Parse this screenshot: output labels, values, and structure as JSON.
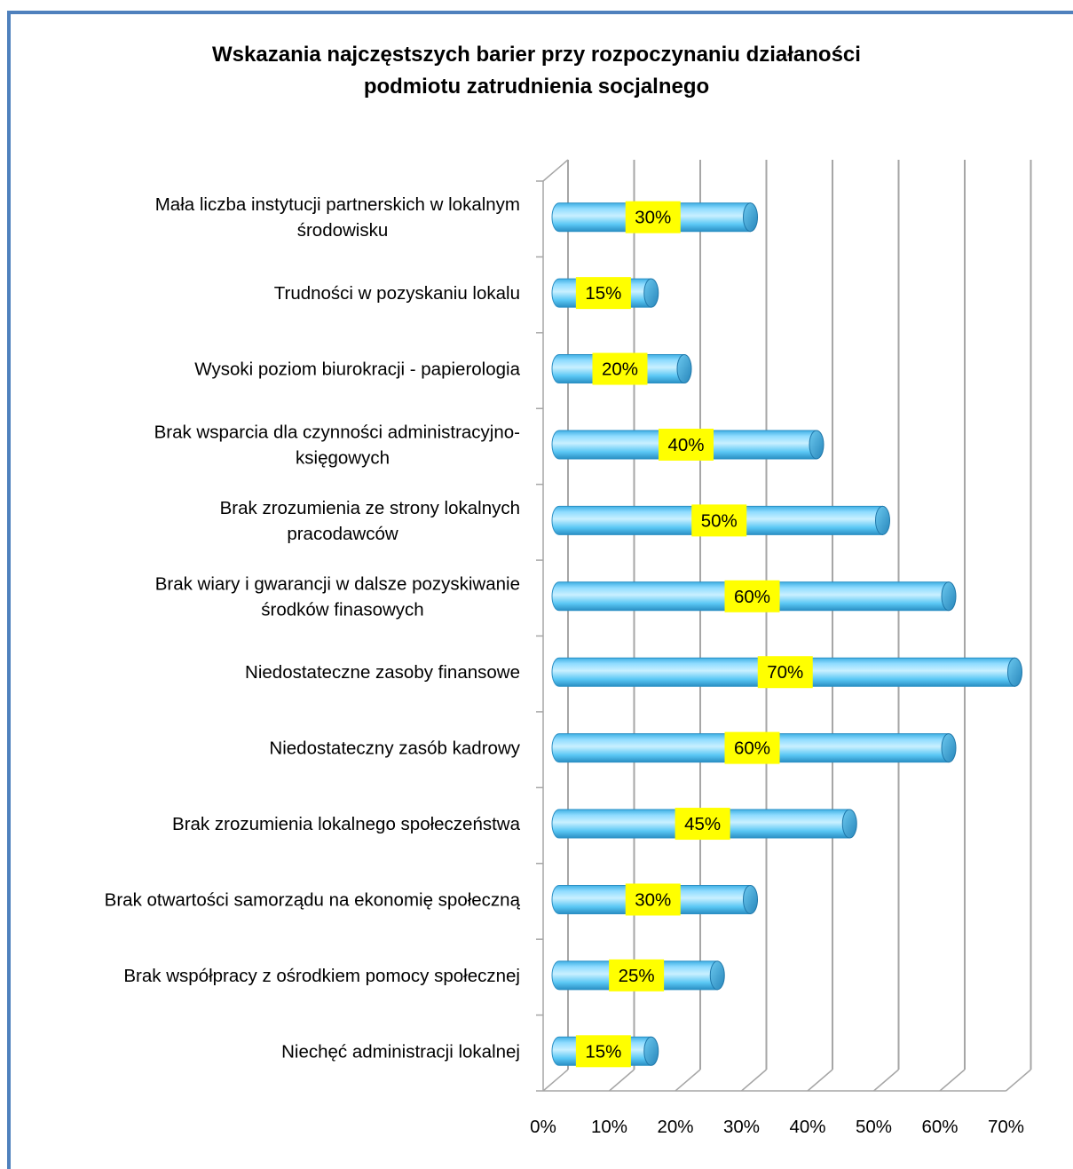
{
  "chart_data": {
    "type": "bar",
    "orientation": "horizontal",
    "style": "3d-cylinder",
    "title_lines": [
      "Wskazania najczęstszych barier przy rozpoczynaniu działaności",
      "podmiotu zatrudnienia socjalnego"
    ],
    "categories": [
      [
        "Mała liczba instytucji partnerskich w lokalnym",
        "środowisku"
      ],
      [
        "Trudności w pozyskaniu lokalu"
      ],
      [
        "Wysoki poziom biurokracji - papierologia"
      ],
      [
        "Brak wsparcia dla czynności administracyjno-",
        "księgowych"
      ],
      [
        "Brak zrozumienia ze strony lokalnych",
        "pracodawców"
      ],
      [
        "Brak wiary i gwarancji w dalsze pozyskiwanie",
        "środków finasowych"
      ],
      [
        "Niedostateczne zasoby finansowe "
      ],
      [
        "Niedostateczny zasób kadrowy"
      ],
      [
        "Brak zrozumienia lokalnego społeczeństwa"
      ],
      [
        "Brak otwartości samorządu na ekonomię społeczną"
      ],
      [
        "Brak współpracy z ośrodkiem pomocy społecznej"
      ],
      [
        "Niechęć administracji lokalnej"
      ]
    ],
    "values": [
      30,
      15,
      20,
      40,
      50,
      60,
      70,
      60,
      45,
      30,
      25,
      15
    ],
    "data_labels": [
      "30%",
      "15%",
      "20%",
      "40%",
      "50%",
      "60%",
      "70%",
      "60%",
      "45%",
      "30%",
      "25%",
      "15%"
    ],
    "x_ticks": [
      "0%",
      "10%",
      "20%",
      "30%",
      "40%",
      "50%",
      "60%",
      "70%"
    ],
    "xlim": [
      0,
      70
    ],
    "grid": true,
    "legend": "none",
    "colors": {
      "bar": "#5bc8f5",
      "bar_highlight": "#c9f0ff",
      "bar_shadow": "#2a8fc4",
      "label_box": "#ffff00",
      "grid": "#a6a6a6",
      "frame": "#4f81bd"
    }
  }
}
